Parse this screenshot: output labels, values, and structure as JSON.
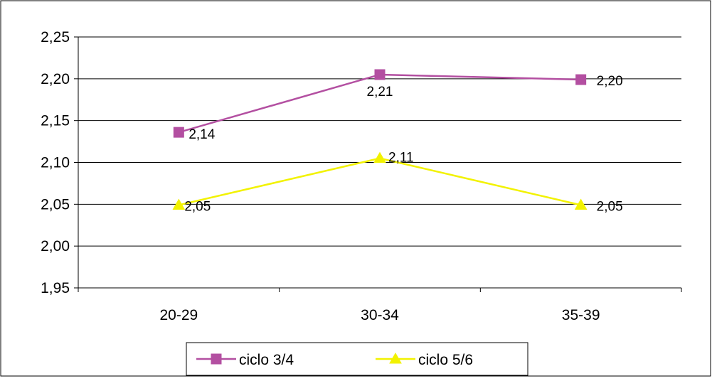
{
  "chart_data": {
    "type": "line",
    "categories": [
      "20-29",
      "30-34",
      "35-39"
    ],
    "series": [
      {
        "name": "ciclo 3/4",
        "values": [
          2.136,
          2.205,
          2.199
        ],
        "labels": [
          "2,14",
          "2,21",
          "2,20"
        ],
        "color": "#B34FA1",
        "marker": "square"
      },
      {
        "name": "ciclo 5/6",
        "values": [
          2.049,
          2.105,
          2.049
        ],
        "labels": [
          "2,05",
          "2,11",
          "2,05"
        ],
        "color": "#F2F200",
        "marker": "triangle"
      }
    ],
    "ylim": [
      1.95,
      2.25
    ],
    "yticks": [
      1.95,
      2.0,
      2.05,
      2.1,
      2.15,
      2.2,
      2.25
    ],
    "ytick_labels": [
      "1,95",
      "2,00",
      "2,05",
      "2,10",
      "2,15",
      "2,20",
      "2,25"
    ],
    "grid": true,
    "legend_position": "bottom",
    "title": "",
    "xlabel": "",
    "ylabel": ""
  }
}
